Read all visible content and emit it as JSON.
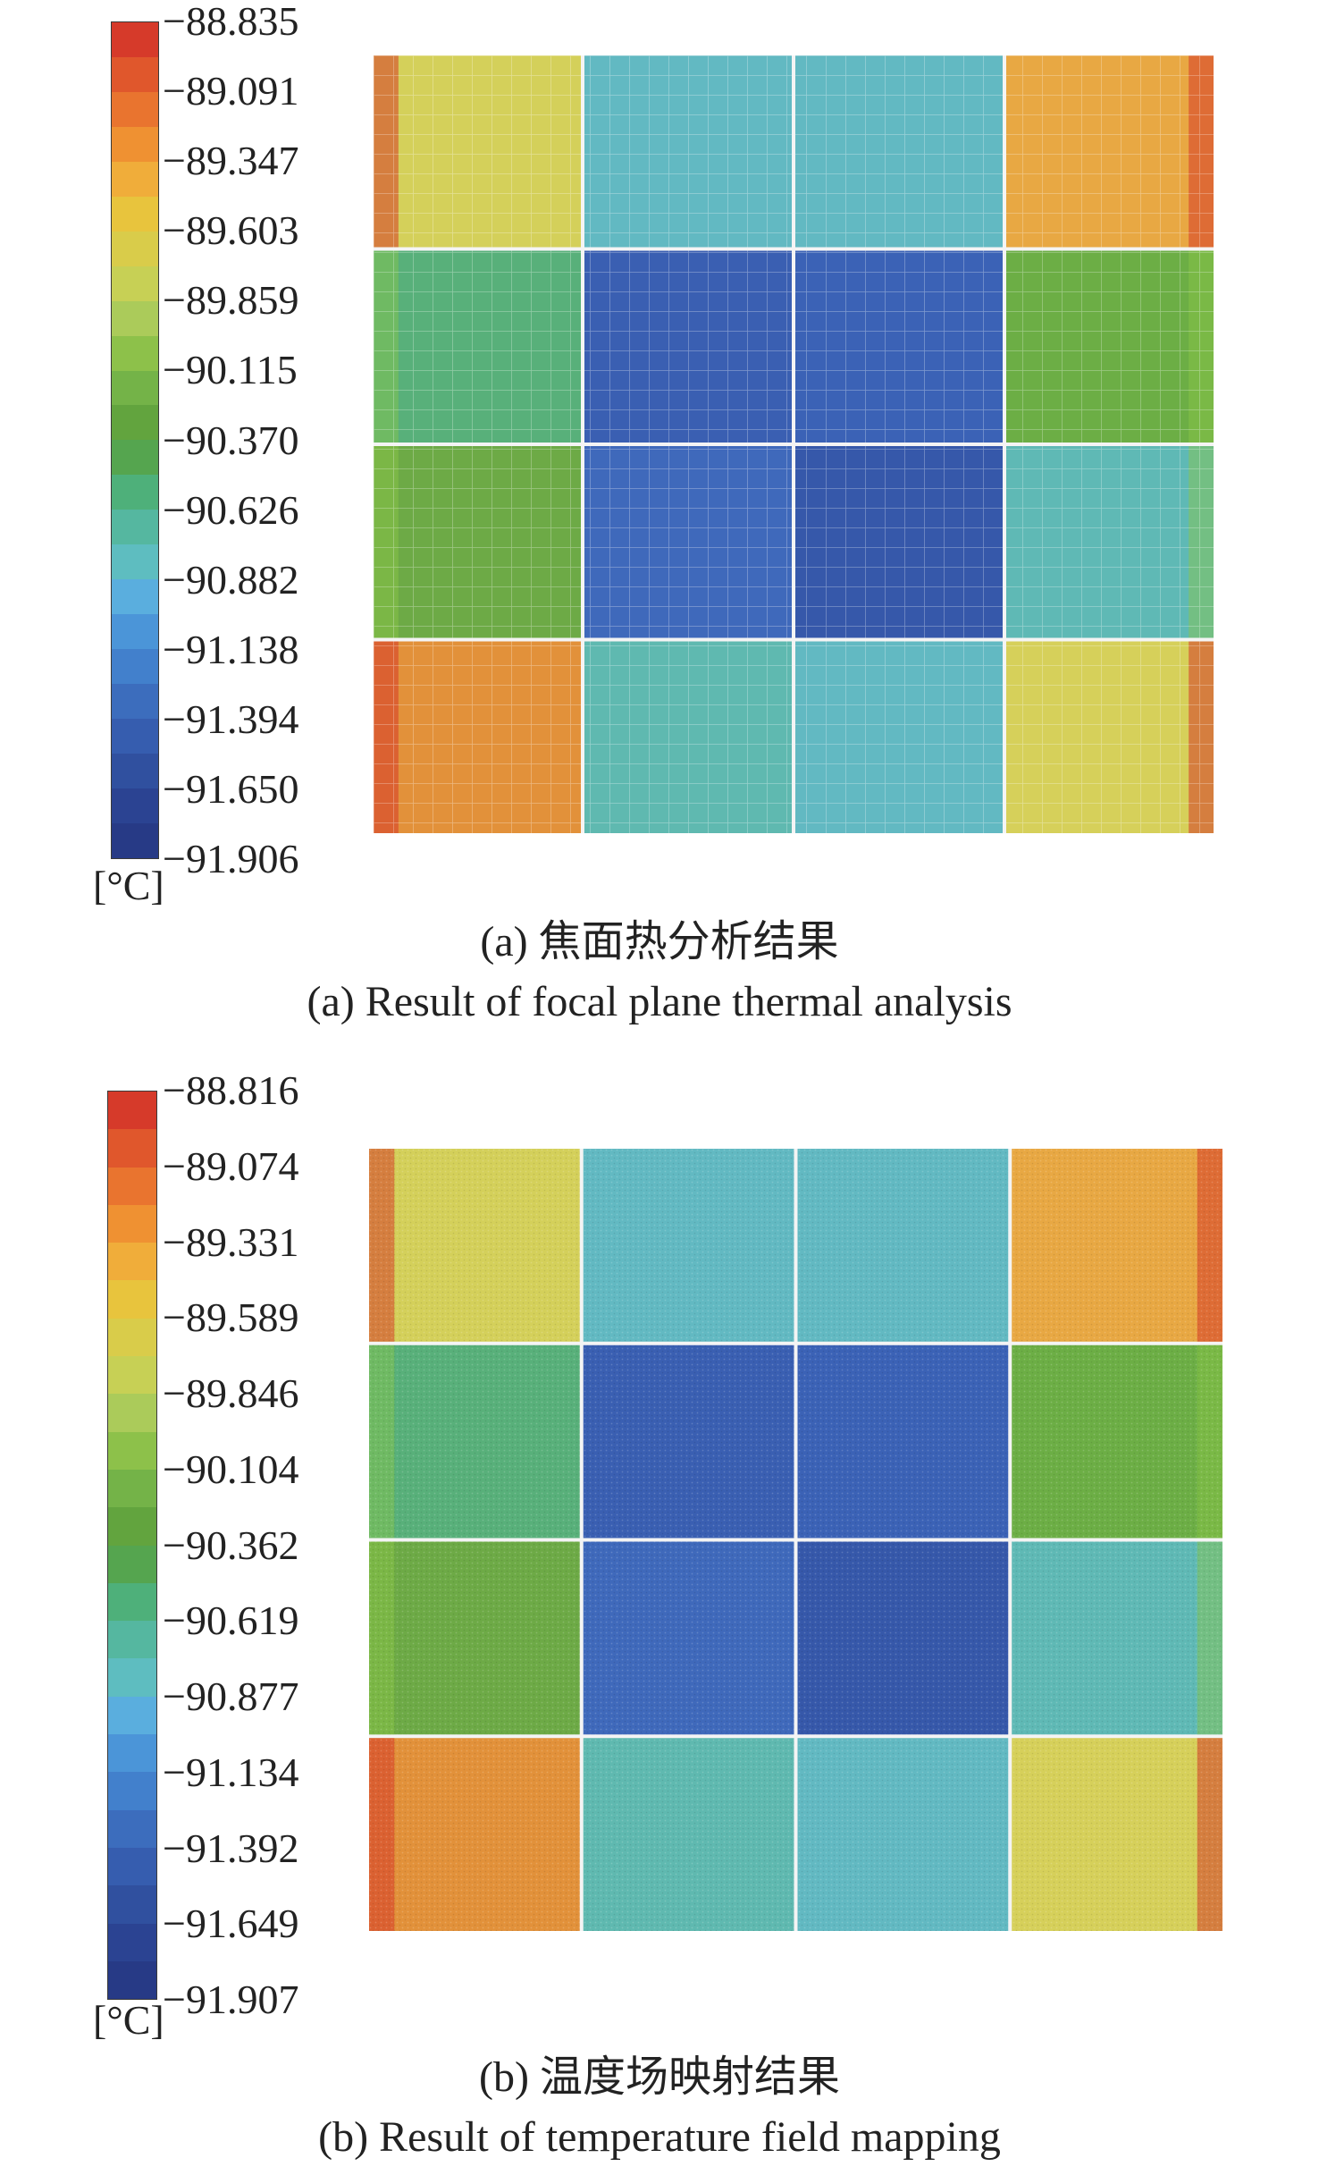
{
  "panels": [
    {
      "id": "a",
      "caption_cn": "(a) 焦面热分析结果",
      "caption_en": "(a) Result of focal plane thermal analysis",
      "unit": "[°C]",
      "colorbar_ticks": [
        "−88.835",
        "−89.091",
        "−89.347",
        "−89.603",
        "−89.859",
        "−90.115",
        "−90.370",
        "−90.626",
        "−90.882",
        "−91.138",
        "−91.394",
        "−91.650",
        "−91.906"
      ],
      "grid_lines": true
    },
    {
      "id": "b",
      "caption_cn": "(b) 温度场映射结果",
      "caption_en": "(b) Result of temperature field mapping",
      "unit": "[°C]",
      "colorbar_ticks": [
        "−88.816",
        "−89.074",
        "−89.331",
        "−89.589",
        "−89.846",
        "−90.104",
        "−90.362",
        "−90.619",
        "−90.877",
        "−91.134",
        "−91.392",
        "−91.649",
        "−91.907"
      ],
      "grid_lines": false
    }
  ],
  "colorbar_colors": [
    "#d63a2a",
    "#e0572c",
    "#e9742f",
    "#ef9132",
    "#f0ad3a",
    "#e8c43d",
    "#d9cc4a",
    "#c7d055",
    "#abcb5a",
    "#8dc14a",
    "#74b348",
    "#62a43e",
    "#55a54f",
    "#4eb07a",
    "#55b7a0",
    "#5ebdc0",
    "#5aaede",
    "#4b95d8",
    "#4280cc",
    "#3c6dbd",
    "#365daf",
    "#30509f",
    "#2b4392",
    "#273a86"
  ],
  "tile_colors": [
    [
      "#d4d05a",
      "#62b9c2",
      "#62b9c2",
      "#e8a843"
    ],
    [
      "#58b07a",
      "#3a5fb2",
      "#3b62b6",
      "#6cae45"
    ],
    [
      "#6daa46",
      "#3f69bb",
      "#3658aa",
      "#5fb9b5"
    ],
    [
      "#e2913a",
      "#5fb9b0",
      "#62b9c2",
      "#d6d05a"
    ]
  ]
}
